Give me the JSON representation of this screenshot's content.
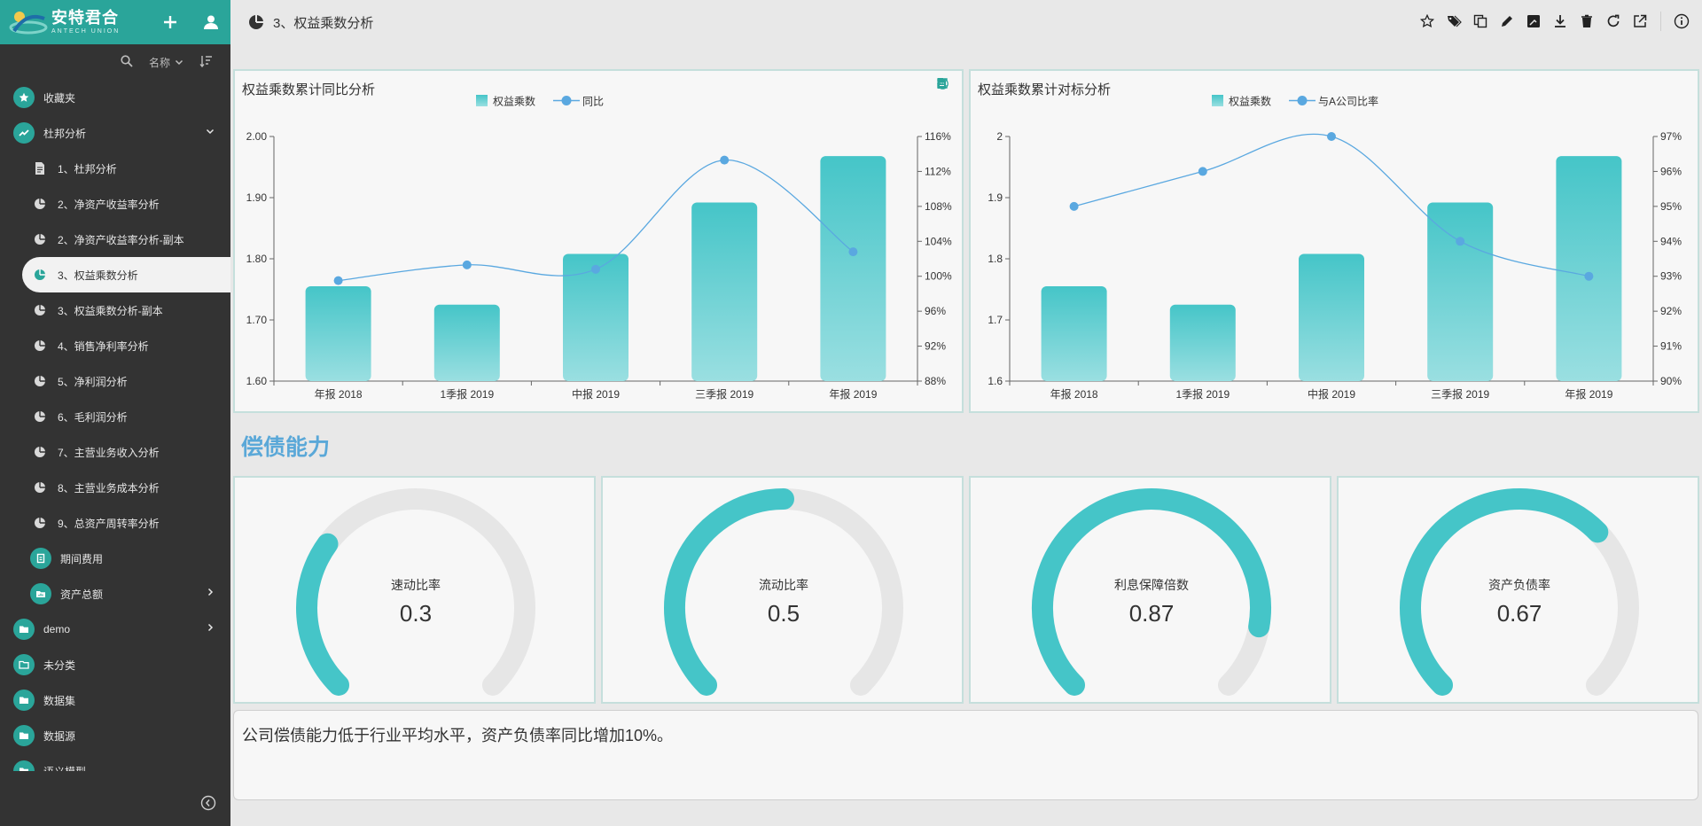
{
  "brand": {
    "name_cn": "安特君合",
    "name_en": "ANTECH UNION",
    "colors": {
      "primary": "#2aa59a",
      "sidebar_bg": "#333333",
      "accent_teal": "#45c5c8",
      "line_blue": "#5aa8e0"
    },
    "add_icon": "plus-icon",
    "user_icon": "user-icon"
  },
  "sort_bar": {
    "search_icon": "search-icon",
    "sort_field": "名称",
    "sort_order_icon": "sort-icon"
  },
  "nav": [
    {
      "label": "收藏夹",
      "icon": "star-icon",
      "level": 0
    },
    {
      "label": "杜邦分析",
      "icon": "trend-icon",
      "level": 0,
      "expanded": true
    },
    {
      "label": "1、杜邦分析",
      "icon": "document-icon",
      "level": 1
    },
    {
      "label": "2、净资产收益率分析",
      "icon": "pie-icon",
      "level": 1
    },
    {
      "label": "2、净资产收益率分析-副本",
      "icon": "pie-icon",
      "level": 1
    },
    {
      "label": "3、权益乘数分析",
      "icon": "pie-icon",
      "level": 1,
      "active": true
    },
    {
      "label": "3、权益乘数分析-副本",
      "icon": "pie-icon",
      "level": 1
    },
    {
      "label": "4、销售净利率分析",
      "icon": "pie-icon",
      "level": 1
    },
    {
      "label": "5、净利润分析",
      "icon": "pie-icon",
      "level": 1
    },
    {
      "label": "6、毛利润分析",
      "icon": "pie-icon",
      "level": 1
    },
    {
      "label": "7、主营业务收入分析",
      "icon": "pie-icon",
      "level": 1
    },
    {
      "label": "8、主营业务成本分析",
      "icon": "pie-icon",
      "level": 1
    },
    {
      "label": "9、总资产周转率分析",
      "icon": "pie-icon",
      "level": 1
    },
    {
      "label": "期间费用",
      "icon": "clipboard-icon",
      "level": 1
    },
    {
      "label": "资产总额",
      "icon": "folder-chart-icon",
      "level": 1,
      "collapsed": true
    },
    {
      "label": "demo",
      "icon": "folder-icon",
      "level": 0,
      "collapsed": true
    },
    {
      "label": "未分类",
      "icon": "folder-open-icon",
      "level": 0
    },
    {
      "label": "数据集",
      "icon": "folder-icon",
      "level": 0
    },
    {
      "label": "数据源",
      "icon": "folder-icon",
      "level": 0
    },
    {
      "label": "语义模型",
      "icon": "folder-icon",
      "level": 0
    }
  ],
  "page": {
    "title": "3、权益乘数分析",
    "title_icon": "pie-icon",
    "toolbar_icons": [
      "star-icon",
      "tag-icon",
      "copy-icon",
      "edit-icon",
      "chart-edit-icon",
      "download-icon",
      "delete-icon",
      "refresh-icon",
      "external-link-icon",
      "info-icon"
    ]
  },
  "panel_tools": [
    "fullscreen-icon",
    "export-icon",
    "more-icon"
  ],
  "section_title": "偿债能力",
  "chart_data": [
    {
      "type": "bar",
      "title": "权益乘数累计同比分析",
      "categories": [
        "年报 2018",
        "1季报 2019",
        "中报 2019",
        "三季报 2019",
        "年报 2019"
      ],
      "series": [
        {
          "name": "权益乘数",
          "type": "bar",
          "axis": "left",
          "values": [
            1.755,
            1.725,
            1.808,
            1.892,
            1.968
          ]
        },
        {
          "name": "同比",
          "type": "line",
          "axis": "right",
          "values": [
            99.5,
            101.3,
            100.8,
            113.3,
            102.8
          ]
        }
      ],
      "ylim_left": [
        1.6,
        2.0
      ],
      "yticks_left": [
        "1.60",
        "1.70",
        "1.80",
        "1.90",
        "2.00"
      ],
      "ylim_right": [
        88,
        116
      ],
      "yticks_right": [
        "88%",
        "92%",
        "96%",
        "100%",
        "104%",
        "108%",
        "112%",
        "116%"
      ],
      "legend": "top-center",
      "grid": "horizontal"
    },
    {
      "type": "bar",
      "title": "权益乘数累计对标分析",
      "categories": [
        "年报 2018",
        "1季报 2019",
        "中报 2019",
        "三季报 2019",
        "年报 2019"
      ],
      "series": [
        {
          "name": "权益乘数",
          "type": "bar",
          "axis": "left",
          "values": [
            1.755,
            1.725,
            1.808,
            1.892,
            1.968
          ]
        },
        {
          "name": "与A公司比率",
          "type": "line",
          "axis": "right",
          "values": [
            95.0,
            96.0,
            97.0,
            94.0,
            93.0
          ]
        }
      ],
      "ylim_left": [
        1.6,
        2.0
      ],
      "yticks_left": [
        "1.6",
        "1.7",
        "1.8",
        "1.9",
        "2"
      ],
      "ylim_right": [
        90,
        97
      ],
      "yticks_right": [
        "90%",
        "91%",
        "92%",
        "93%",
        "94%",
        "95%",
        "96%",
        "97%"
      ],
      "legend": "top-center",
      "grid": "horizontal"
    },
    {
      "type": "gauge",
      "label": "速动比率",
      "value": 0.3,
      "display": "0.3",
      "max": 1
    },
    {
      "type": "gauge",
      "label": "流动比率",
      "value": 0.5,
      "display": "0.5",
      "max": 1
    },
    {
      "type": "gauge",
      "label": "利息保障倍数",
      "value": 0.87,
      "display": "0.87",
      "max": 1
    },
    {
      "type": "gauge",
      "label": "资产负债率",
      "value": 0.67,
      "display": "0.67",
      "max": 1
    }
  ],
  "comment": "公司偿债能力低于行业平均水平，资产负债率同比增加10%。"
}
